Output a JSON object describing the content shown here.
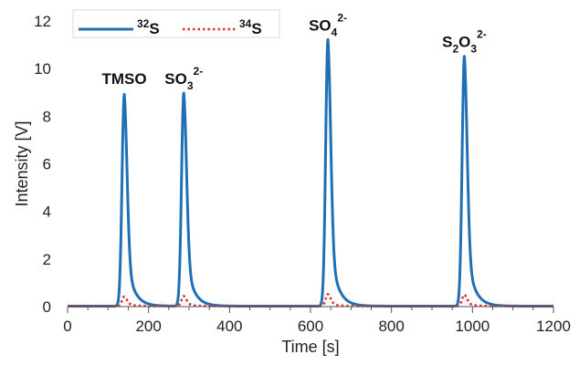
{
  "chart_data": {
    "type": "line",
    "title": "",
    "xlabel": "Time [s]",
    "ylabel": "Intensity [V]",
    "xlim": [
      0,
      1200
    ],
    "ylim": [
      0,
      12
    ],
    "x_ticks": [
      0,
      200,
      400,
      600,
      800,
      1000,
      1200
    ],
    "y_ticks": [
      0,
      2,
      4,
      6,
      8,
      10,
      12
    ],
    "grid": false,
    "legend_position": "top-left",
    "series": [
      {
        "name_sup": "32",
        "name_main": "S",
        "style": "solid",
        "color": "#1f6fb5",
        "peaks": [
          {
            "center": 140,
            "height": 8.9
          },
          {
            "center": 287,
            "height": 8.95
          },
          {
            "center": 643,
            "height": 11.2
          },
          {
            "center": 980,
            "height": 10.5
          }
        ]
      },
      {
        "name_sup": "34",
        "name_main": "S",
        "style": "dotted",
        "color": "#e03030",
        "peaks": [
          {
            "center": 140,
            "height": 0.4
          },
          {
            "center": 287,
            "height": 0.42
          },
          {
            "center": 643,
            "height": 0.5
          },
          {
            "center": 980,
            "height": 0.48
          }
        ]
      }
    ],
    "annotations": [
      {
        "x": 140,
        "y": 9.2,
        "main": "TMSO",
        "sub": "",
        "sup": ""
      },
      {
        "x": 287,
        "y": 9.2,
        "main": "SO",
        "sub": "3",
        "sup": "2-"
      },
      {
        "x": 643,
        "y": 11.45,
        "main": "SO",
        "sub": "4",
        "sup": "2-"
      },
      {
        "x": 980,
        "y": 10.75,
        "main": "S",
        "sub": "2",
        "extra_main": "O",
        "extra_sub": "3",
        "sup": "2-"
      }
    ]
  }
}
